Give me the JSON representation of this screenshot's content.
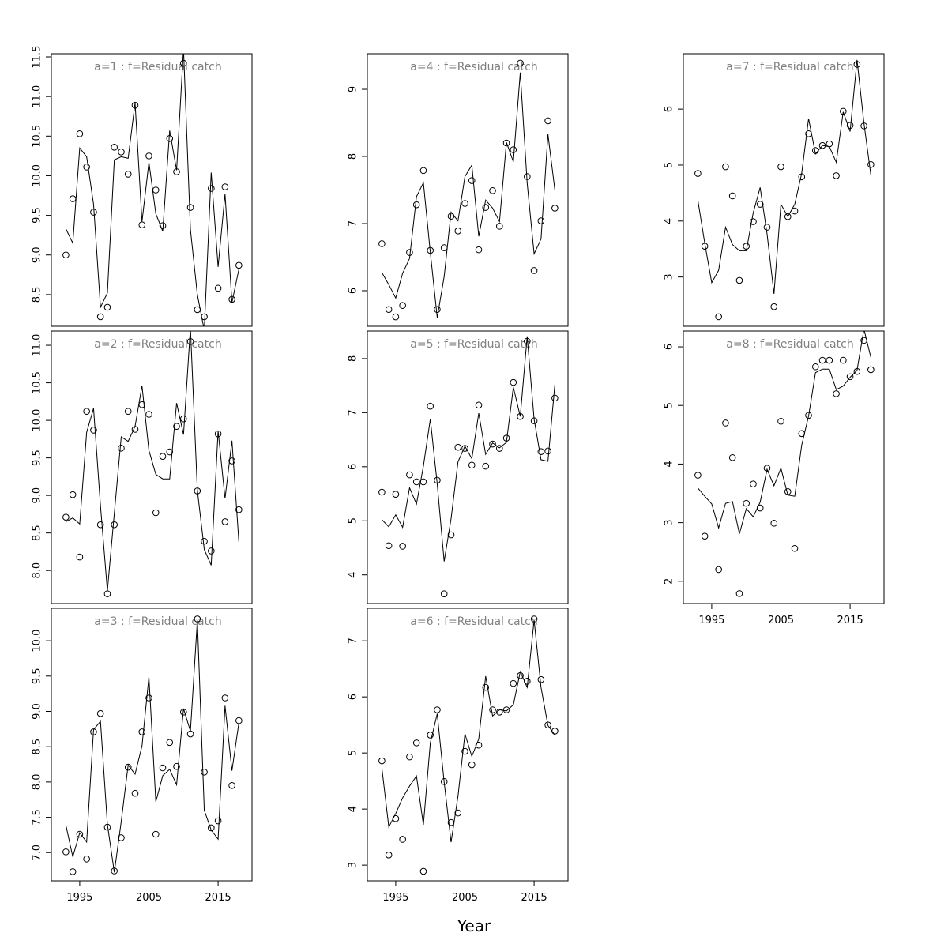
{
  "xlabel": "Year",
  "chart_data": [
    {
      "type": "line",
      "title": "a=1  :  f=Residual catch",
      "x": [
        1993,
        1994,
        1995,
        1996,
        1997,
        1998,
        1999,
        2000,
        2001,
        2002,
        2003,
        2004,
        2005,
        2006,
        2007,
        2008,
        2009,
        2010,
        2011,
        2012,
        2013,
        2014,
        2015,
        2016,
        2017,
        2018
      ],
      "xlim": [
        1990.9,
        2019.9
      ],
      "ylim": [
        8.1,
        11.54
      ],
      "yticks": [
        8.5,
        {
          "value": 9,
          "label": "9.0"
        },
        9.5,
        {
          "value": 10,
          "label": "10.0"
        },
        10.5,
        {
          "value": 11,
          "label": "11.0"
        },
        11.5
      ],
      "series": [
        {
          "style": "points",
          "color": "#000000",
          "values": [
            9.0,
            9.71,
            10.53,
            10.11,
            9.54,
            8.22,
            8.34,
            10.36,
            10.3,
            10.02,
            10.89,
            9.38,
            10.25,
            9.82,
            9.37,
            10.47,
            10.05,
            11.42,
            9.6,
            8.31,
            8.22,
            9.84,
            8.58,
            9.86,
            8.44,
            8.87
          ]
        },
        {
          "style": "line",
          "color": "#000000",
          "values": [
            9.33,
            9.15,
            10.35,
            10.24,
            9.64,
            8.34,
            8.52,
            10.2,
            10.24,
            10.22,
            10.92,
            9.42,
            10.17,
            9.52,
            9.3,
            10.57,
            10.07,
            11.6,
            9.32,
            8.5,
            8.05,
            10.04,
            8.85,
            9.77,
            8.4,
            8.82
          ]
        }
      ]
    },
    {
      "type": "line",
      "title": "a=2  :  f=Residual catch",
      "x": [
        1993,
        1994,
        1995,
        1996,
        1997,
        1998,
        1999,
        2000,
        2001,
        2002,
        2003,
        2004,
        2005,
        2006,
        2007,
        2008,
        2009,
        2010,
        2011,
        2012,
        2013,
        2014,
        2015,
        2016,
        2017,
        2018
      ],
      "xlim": [
        1990.9,
        2019.9
      ],
      "ylim": [
        7.56,
        11.19
      ],
      "yticks": [
        {
          "value": 8,
          "label": "8.0"
        },
        8.5,
        {
          "value": 9,
          "label": "9.0"
        },
        9.5,
        {
          "value": 10,
          "label": "10.0"
        },
        10.5,
        {
          "value": 11,
          "label": "11.0"
        }
      ],
      "series": [
        {
          "style": "points",
          "color": "#000000",
          "values": [
            8.71,
            9.01,
            8.18,
            10.12,
            9.87,
            8.61,
            7.69,
            8.61,
            9.63,
            10.12,
            9.88,
            10.21,
            10.08,
            8.77,
            9.52,
            9.58,
            9.92,
            10.02,
            11.05,
            9.06,
            8.39,
            8.26,
            9.82,
            8.65,
            9.46,
            8.81
          ]
        },
        {
          "style": "line",
          "color": "#000000",
          "values": [
            8.65,
            8.7,
            8.62,
            9.84,
            10.16,
            8.86,
            7.73,
            8.76,
            9.78,
            9.72,
            9.92,
            10.46,
            9.6,
            9.28,
            9.22,
            9.22,
            10.23,
            9.81,
            11.23,
            9.07,
            8.28,
            8.07,
            9.86,
            8.96,
            9.73,
            8.38
          ]
        }
      ]
    },
    {
      "type": "line",
      "title": "a=3  :  f=Residual catch",
      "x": [
        1993,
        1994,
        1995,
        1996,
        1997,
        1998,
        1999,
        2000,
        2001,
        2002,
        2003,
        2004,
        2005,
        2006,
        2007,
        2008,
        2009,
        2010,
        2011,
        2012,
        2013,
        2014,
        2015,
        2016,
        2017,
        2018
      ],
      "xlim": [
        1990.9,
        2019.9
      ],
      "xticks": [
        1995,
        2005,
        2015
      ],
      "ylim": [
        6.6,
        10.46
      ],
      "yticks": [
        {
          "value": 7,
          "label": "7.0"
        },
        7.5,
        {
          "value": 8,
          "label": "8.0"
        },
        8.5,
        {
          "value": 9,
          "label": "9.0"
        },
        9.5,
        {
          "value": 10,
          "label": "10.0"
        }
      ],
      "series": [
        {
          "style": "points",
          "color": "#000000",
          "values": [
            7.01,
            6.73,
            7.26,
            6.91,
            8.71,
            8.97,
            7.36,
            6.74,
            7.21,
            8.21,
            7.84,
            8.71,
            9.19,
            7.26,
            8.2,
            8.56,
            8.22,
            8.99,
            8.68,
            10.31,
            8.14,
            7.35,
            7.45,
            9.19,
            7.95,
            8.87
          ]
        },
        {
          "style": "line",
          "color": "#000000",
          "values": [
            7.39,
            6.94,
            7.28,
            7.15,
            8.74,
            8.86,
            7.4,
            6.72,
            7.44,
            8.24,
            8.11,
            8.51,
            9.49,
            7.72,
            8.09,
            8.18,
            7.96,
            9.04,
            8.72,
            10.29,
            7.6,
            7.32,
            7.19,
            9.08,
            8.16,
            8.84
          ]
        }
      ]
    },
    {
      "type": "line",
      "title": "a=4  :  f=Residual catch",
      "x": [
        1993,
        1994,
        1995,
        1996,
        1997,
        1998,
        1999,
        2000,
        2001,
        2002,
        2003,
        2004,
        2005,
        2006,
        2007,
        2008,
        2009,
        2010,
        2011,
        2012,
        2013,
        2014,
        2015,
        2016,
        2017,
        2018
      ],
      "xlim": [
        1990.9,
        2019.9
      ],
      "ylim": [
        5.47,
        9.53
      ],
      "yticks": [
        6,
        7,
        8,
        9
      ],
      "series": [
        {
          "style": "points",
          "color": "#000000",
          "values": [
            6.7,
            5.72,
            5.61,
            5.78,
            6.57,
            7.28,
            7.79,
            6.6,
            5.72,
            6.64,
            7.11,
            6.89,
            7.3,
            7.64,
            6.61,
            7.24,
            7.49,
            6.96,
            8.2,
            8.1,
            9.39,
            7.7,
            6.3,
            7.04,
            8.53,
            7.23
          ]
        },
        {
          "style": "line",
          "color": "#000000",
          "values": [
            6.27,
            6.09,
            5.89,
            6.26,
            6.48,
            7.4,
            7.61,
            6.57,
            5.6,
            6.21,
            7.17,
            7.04,
            7.7,
            7.87,
            6.81,
            7.35,
            7.23,
            7.03,
            8.21,
            7.92,
            9.25,
            7.6,
            6.55,
            6.77,
            8.33,
            7.5
          ]
        }
      ]
    },
    {
      "type": "line",
      "title": "a=5  :  f=Residual catch",
      "x": [
        1993,
        1994,
        1995,
        1996,
        1997,
        1998,
        1999,
        2000,
        2001,
        2002,
        2003,
        2004,
        2005,
        2006,
        2007,
        2008,
        2009,
        2010,
        2011,
        2012,
        2013,
        2014,
        2015,
        2016,
        2017,
        2018
      ],
      "xlim": [
        1990.9,
        2019.9
      ],
      "ylim": [
        3.47,
        8.51
      ],
      "yticks": [
        4,
        5,
        6,
        7,
        8
      ],
      "series": [
        {
          "style": "points",
          "color": "#000000",
          "values": [
            5.53,
            4.54,
            5.49,
            4.53,
            5.85,
            5.72,
            5.72,
            7.12,
            5.75,
            3.65,
            4.74,
            6.36,
            6.34,
            6.03,
            7.14,
            6.01,
            6.42,
            6.34,
            6.53,
            7.56,
            6.93,
            8.32,
            6.85,
            6.28,
            6.29,
            7.27
          ]
        },
        {
          "style": "line",
          "color": "#000000",
          "values": [
            5.02,
            4.89,
            5.11,
            4.88,
            5.61,
            5.31,
            6.01,
            6.88,
            5.68,
            4.25,
            5.04,
            6.09,
            6.38,
            6.15,
            6.99,
            6.23,
            6.44,
            6.35,
            6.45,
            7.47,
            6.93,
            8.41,
            6.88,
            6.13,
            6.1,
            7.52
          ]
        }
      ]
    },
    {
      "type": "line",
      "title": "a=6  :  f=Residual catch",
      "x": [
        1993,
        1994,
        1995,
        1996,
        1997,
        1998,
        1999,
        2000,
        2001,
        2002,
        2003,
        2004,
        2005,
        2006,
        2007,
        2008,
        2009,
        2010,
        2011,
        2012,
        2013,
        2014,
        2015,
        2016,
        2017,
        2018
      ],
      "xlim": [
        1990.9,
        2019.9
      ],
      "xticks": [
        1995,
        2005,
        2015
      ],
      "ylim": [
        2.72,
        7.58
      ],
      "yticks": [
        3,
        4,
        5,
        6,
        7
      ],
      "series": [
        {
          "style": "points",
          "color": "#000000",
          "values": [
            4.86,
            3.18,
            3.83,
            3.46,
            4.93,
            5.18,
            2.89,
            5.32,
            5.77,
            4.49,
            3.76,
            3.93,
            5.03,
            4.79,
            5.14,
            6.17,
            5.77,
            5.73,
            5.77,
            6.24,
            6.38,
            6.28,
            7.39,
            6.31,
            5.5,
            5.39
          ]
        },
        {
          "style": "line",
          "color": "#000000",
          "values": [
            4.73,
            3.68,
            3.92,
            4.2,
            4.41,
            4.59,
            3.72,
            5.18,
            5.7,
            4.48,
            3.41,
            4.23,
            5.34,
            4.94,
            5.25,
            6.37,
            5.66,
            5.77,
            5.75,
            5.86,
            6.45,
            6.17,
            7.37,
            6.17,
            5.49,
            5.32
          ]
        }
      ]
    },
    {
      "type": "line",
      "title": "a=7  :  f=Residual catch",
      "x": [
        1993,
        1994,
        1995,
        1996,
        1997,
        1998,
        1999,
        2000,
        2001,
        2002,
        2003,
        2004,
        2005,
        2006,
        2007,
        2008,
        2009,
        2010,
        2011,
        2012,
        2013,
        2014,
        2015,
        2016,
        2017,
        2018
      ],
      "xlim": [
        1990.9,
        2019.9
      ],
      "ylim": [
        2.12,
        6.99
      ],
      "yticks": [
        3,
        4,
        5,
        6
      ],
      "series": [
        {
          "style": "points",
          "color": "#000000",
          "values": [
            4.85,
            3.55,
            null,
            2.29,
            4.97,
            4.45,
            2.94,
            3.55,
            3.99,
            4.3,
            3.89,
            2.47,
            4.97,
            4.08,
            4.18,
            4.79,
            5.56,
            5.26,
            5.35,
            5.38,
            4.81,
            5.96,
            5.71,
            6.8,
            5.7,
            5.01
          ]
        },
        {
          "style": "line",
          "color": "#000000",
          "values": [
            4.37,
            3.6,
            2.9,
            3.12,
            3.89,
            3.58,
            3.47,
            3.47,
            4.15,
            4.6,
            3.77,
            2.7,
            4.3,
            4.08,
            4.3,
            4.85,
            5.83,
            5.2,
            5.35,
            5.33,
            5.05,
            5.95,
            5.6,
            6.88,
            5.75,
            4.82
          ]
        }
      ]
    },
    {
      "type": "line",
      "title": "a=8  :  f=Residual catch",
      "x": [
        1993,
        1994,
        1995,
        1996,
        1997,
        1998,
        1999,
        2000,
        2001,
        2002,
        2003,
        2004,
        2005,
        2006,
        2007,
        2008,
        2009,
        2010,
        2011,
        2012,
        2013,
        2014,
        2015,
        2016,
        2017,
        2018
      ],
      "xlim": [
        1990.9,
        2019.9
      ],
      "xticks": [
        1995,
        2005,
        2015
      ],
      "ylim": [
        1.62,
        6.27
      ],
      "yticks": [
        2,
        3,
        4,
        5,
        6
      ],
      "series": [
        {
          "style": "points",
          "color": "#000000",
          "values": [
            3.81,
            2.77,
            null,
            2.2,
            4.7,
            4.11,
            1.79,
            3.33,
            3.66,
            3.25,
            3.93,
            2.99,
            4.73,
            3.53,
            2.56,
            4.52,
            4.83,
            5.66,
            5.77,
            5.77,
            5.2,
            5.77,
            5.49,
            5.58,
            6.11,
            5.61
          ]
        },
        {
          "style": "line",
          "color": "#000000",
          "values": [
            3.59,
            3.45,
            3.32,
            2.91,
            3.33,
            3.36,
            2.81,
            3.24,
            3.1,
            3.35,
            3.91,
            3.63,
            3.93,
            3.47,
            3.45,
            4.32,
            4.82,
            5.56,
            5.62,
            5.62,
            5.27,
            5.33,
            5.48,
            5.6,
            6.3,
            5.82
          ]
        }
      ]
    }
  ]
}
